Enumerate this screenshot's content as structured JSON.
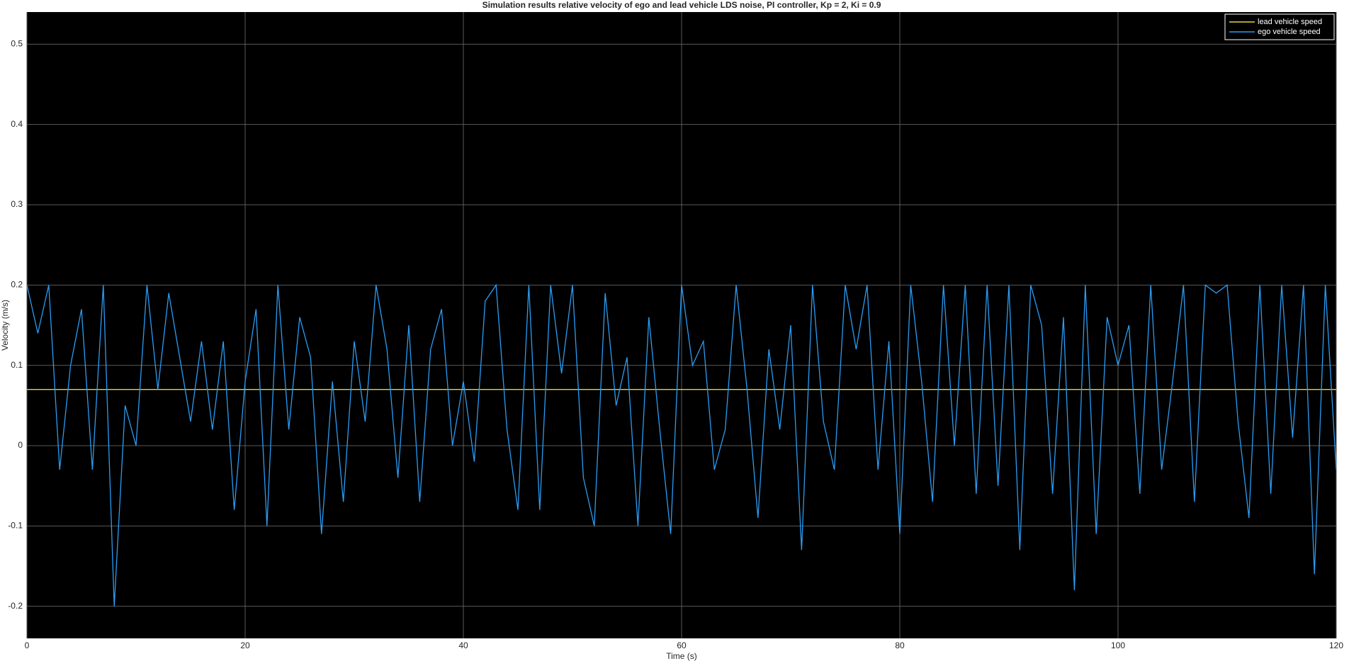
{
  "chart_data": {
    "type": "line",
    "title": "Simulation results relative velocity of ego and lead vehicle LDS noise, PI controller, Kp = 2, Ki = 0.9",
    "xlabel": "Time (s)",
    "ylabel": "Velocity (m/s)",
    "xlim": [
      0,
      120
    ],
    "xticks": [
      0,
      20,
      40,
      60,
      80,
      100,
      120
    ],
    "ylim": [
      -0.24,
      0.54
    ],
    "yticks": [
      -0.2,
      -0.1,
      0,
      0.1,
      0.2,
      0.3,
      0.4,
      0.5
    ],
    "grid": true,
    "legend": "top-right",
    "background": "#000000",
    "series": [
      {
        "name": "lead vehicle speed",
        "color": "#e5d63a",
        "x": [
          0,
          120
        ],
        "values": [
          0.07,
          0.07
        ]
      },
      {
        "name": "ego vehicle speed",
        "color": "#2a9df4",
        "x": [
          0,
          1,
          2,
          3,
          4,
          5,
          6,
          7,
          8,
          9,
          10,
          11,
          12,
          13,
          14,
          15,
          16,
          17,
          18,
          19,
          20,
          21,
          22,
          23,
          24,
          25,
          26,
          27,
          28,
          29,
          30,
          31,
          32,
          33,
          34,
          35,
          36,
          37,
          38,
          39,
          40,
          41,
          42,
          43,
          44,
          45,
          46,
          47,
          48,
          49,
          50,
          51,
          52,
          53,
          54,
          55,
          56,
          57,
          58,
          59,
          60,
          61,
          62,
          63,
          64,
          65,
          66,
          67,
          68,
          69,
          70,
          71,
          72,
          73,
          74,
          75,
          76,
          77,
          78,
          79,
          80,
          81,
          82,
          83,
          84,
          85,
          86,
          87,
          88,
          89,
          90,
          91,
          92,
          93,
          94,
          95,
          96,
          97,
          98,
          99,
          100,
          101,
          102,
          103,
          104,
          105,
          106,
          107,
          108,
          109,
          110,
          111,
          112,
          113,
          114,
          115,
          116,
          117,
          118,
          119,
          120
        ],
        "values": [
          0.2,
          0.14,
          0.2,
          -0.03,
          0.1,
          0.17,
          -0.03,
          0.2,
          -0.2,
          0.05,
          0.0,
          0.2,
          0.07,
          0.19,
          0.11,
          0.03,
          0.13,
          0.02,
          0.13,
          -0.08,
          0.08,
          0.17,
          -0.1,
          0.2,
          0.02,
          0.16,
          0.11,
          -0.11,
          0.08,
          -0.07,
          0.13,
          0.03,
          0.2,
          0.12,
          -0.04,
          0.15,
          -0.07,
          0.12,
          0.17,
          0.0,
          0.08,
          -0.02,
          0.18,
          0.2,
          0.02,
          -0.08,
          0.2,
          -0.08,
          0.2,
          0.09,
          0.2,
          -0.04,
          -0.1,
          0.19,
          0.05,
          0.11,
          -0.1,
          0.16,
          0.02,
          -0.11,
          0.2,
          0.1,
          0.13,
          -0.03,
          0.02,
          0.2,
          0.07,
          -0.09,
          0.12,
          0.02,
          0.15,
          -0.13,
          0.2,
          0.03,
          -0.03,
          0.2,
          0.12,
          0.2,
          -0.03,
          0.13,
          -0.11,
          0.2,
          0.08,
          -0.07,
          0.2,
          0.0,
          0.2,
          -0.06,
          0.2,
          -0.05,
          0.2,
          -0.13,
          0.2,
          0.15,
          -0.06,
          0.16,
          -0.18,
          0.2,
          -0.11,
          0.16,
          0.1,
          0.15,
          -0.06,
          0.2,
          -0.03,
          0.08,
          0.2,
          -0.07,
          0.2,
          0.19,
          0.2,
          0.03,
          -0.09,
          0.2,
          -0.06,
          0.2,
          0.01,
          0.2,
          -0.16,
          0.2,
          -0.03
        ]
      }
    ]
  }
}
